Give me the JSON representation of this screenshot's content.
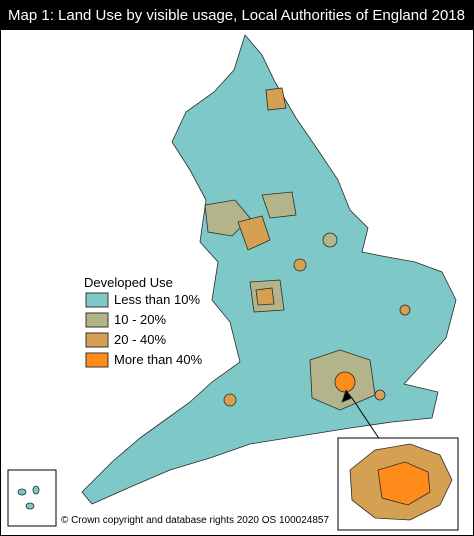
{
  "title": "Map 1: Land Use by visible usage, Local Authorities of England 2018",
  "legend": {
    "title": "Developed Use",
    "items": [
      {
        "label": "Less than 10%",
        "color": "#7fc8c8"
      },
      {
        "label": "10 - 20%",
        "color": "#b3b48a"
      },
      {
        "label": "20 - 40%",
        "color": "#d6a052"
      },
      {
        "label": "More than 40%",
        "color": "#ff8c1a"
      }
    ]
  },
  "credit": "© Crown copyright and database rights 2020 OS 100024857"
}
